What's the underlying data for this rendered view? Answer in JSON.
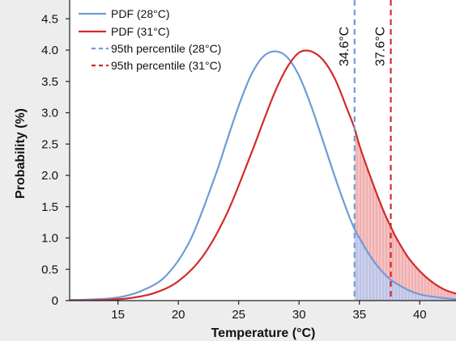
{
  "chart_data": {
    "type": "line",
    "xlabel": "Temperature (°C)",
    "ylabel": "Probability (%)",
    "xlim": [
      11,
      43
    ],
    "ylim": [
      0,
      4.8
    ],
    "x_ticks": [
      15,
      20,
      25,
      30,
      35,
      40
    ],
    "y_ticks": [
      0,
      0.5,
      1.0,
      1.5,
      2.0,
      2.5,
      3.0,
      3.5,
      4.0,
      4.5
    ],
    "y_tick_labels": [
      "0",
      "0.5",
      "1.0",
      "1.5",
      "2.0",
      "2.5",
      "3.0",
      "3.5",
      "4.0",
      "4.5"
    ],
    "series": [
      {
        "name": "PDF (28°C)",
        "color": "#6f9bd6",
        "x": [
          11,
          13,
          15,
          17,
          19,
          21,
          23,
          24,
          25,
          26,
          27,
          28,
          29,
          30,
          31,
          32,
          33,
          34,
          34.6,
          35,
          36,
          37,
          38,
          40,
          43
        ],
        "y": [
          0.01,
          0.02,
          0.05,
          0.16,
          0.4,
          0.97,
          1.96,
          2.54,
          3.11,
          3.59,
          3.89,
          3.98,
          3.89,
          3.59,
          3.11,
          2.54,
          1.96,
          1.42,
          1.14,
          1.0,
          0.68,
          0.44,
          0.28,
          0.1,
          0.02
        ]
      },
      {
        "name": "PDF (31°C)",
        "color": "#d42a2a",
        "x": [
          11,
          14,
          16,
          18,
          20,
          22,
          24,
          26,
          27,
          28,
          29,
          30,
          31,
          32,
          33,
          34,
          34.6,
          35,
          36,
          37,
          37.6,
          38,
          39,
          40,
          41,
          42,
          43
        ],
        "y": [
          0.0,
          0.01,
          0.04,
          0.12,
          0.31,
          0.7,
          1.38,
          2.33,
          2.84,
          3.33,
          3.72,
          3.96,
          3.98,
          3.84,
          3.53,
          3.05,
          2.75,
          2.48,
          1.93,
          1.43,
          1.18,
          1.02,
          0.7,
          0.47,
          0.3,
          0.18,
          0.11
        ]
      }
    ],
    "vlines": [
      {
        "name": "95th percentile (28°C)",
        "x": 34.6,
        "label": "34.6°C",
        "color": "#6f9bd6"
      },
      {
        "name": "95th percentile (31°C)",
        "x": 37.6,
        "label": "37.6°C",
        "color": "#d42a2a"
      }
    ],
    "legend": {
      "placement": "top-left",
      "entries": [
        "PDF (28°C)",
        "PDF (31°C)",
        "95th percentile (28°C)",
        "95th percentile (31°C)"
      ]
    },
    "grid": false
  }
}
